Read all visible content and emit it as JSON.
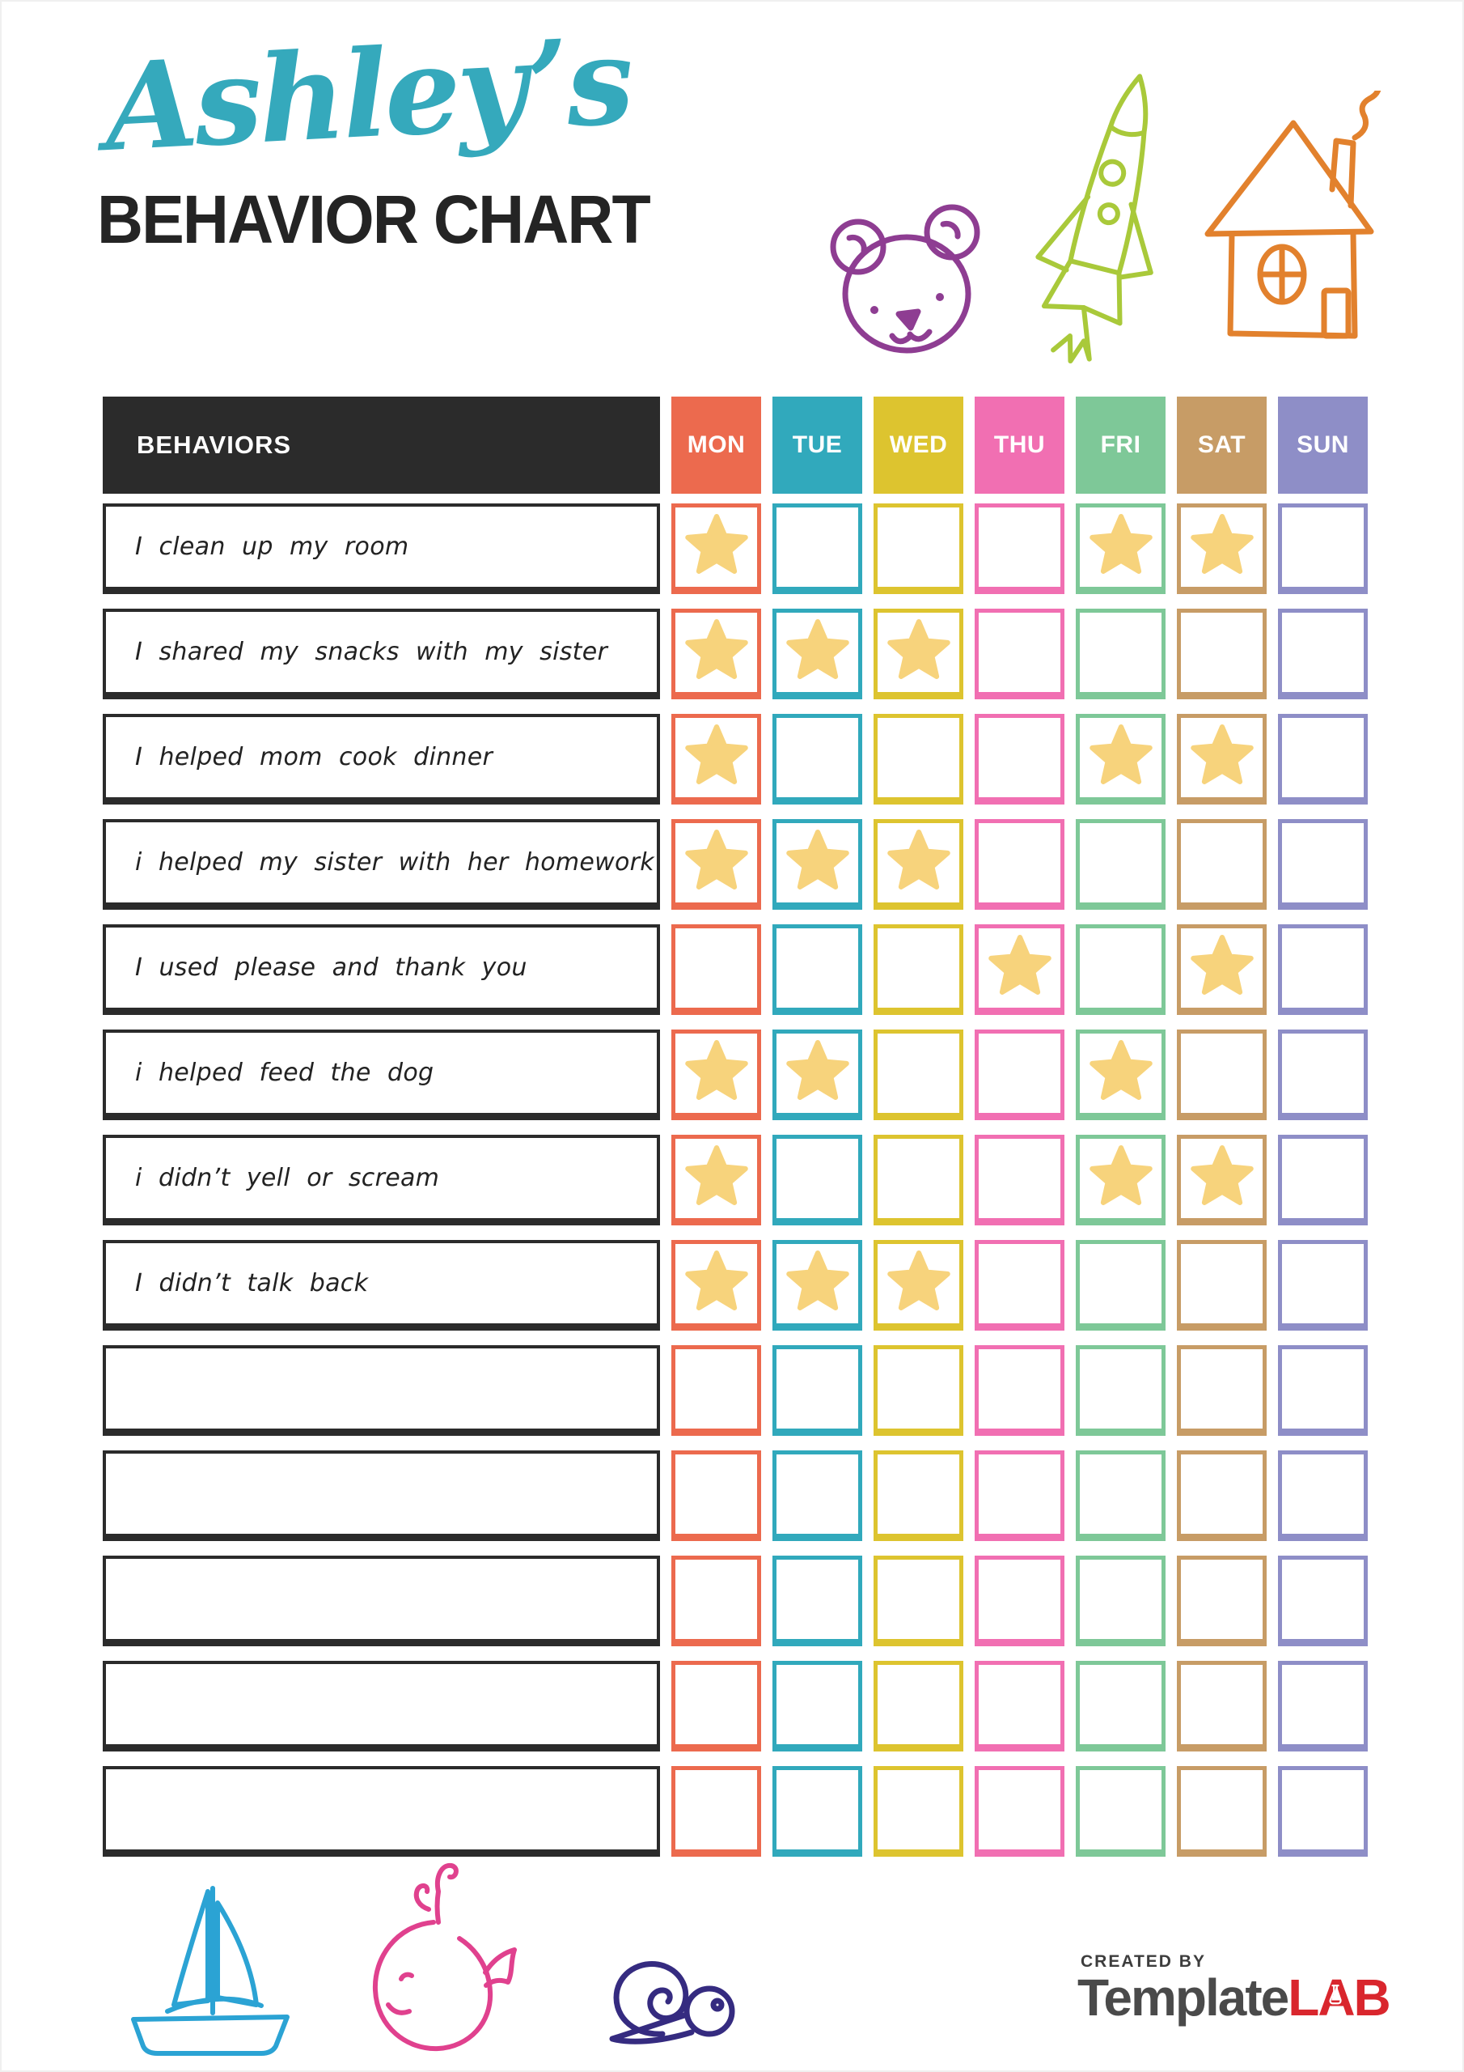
{
  "title": {
    "name_script": "Ashley’s",
    "heading": "BEHAVIOR CHART"
  },
  "table": {
    "behaviors_header": "BEHAVIORS",
    "star_color": "#f7d37c",
    "days": [
      {
        "label": "MON",
        "color": "#ec6a4e"
      },
      {
        "label": "TUE",
        "color": "#31a9bc"
      },
      {
        "label": "WED",
        "color": "#ddc42f"
      },
      {
        "label": "THU",
        "color": "#f16fb2"
      },
      {
        "label": "FRI",
        "color": "#7ec898"
      },
      {
        "label": "SAT",
        "color": "#c79c66"
      },
      {
        "label": "SUN",
        "color": "#8e8ec7"
      }
    ],
    "rows": [
      {
        "label": "I clean up my room",
        "stars": [
          "MON",
          "FRI",
          "SAT"
        ]
      },
      {
        "label": "I shared my snacks with my sister",
        "stars": [
          "MON",
          "TUE",
          "WED"
        ]
      },
      {
        "label": "I helped mom cook dinner",
        "stars": [
          "MON",
          "FRI",
          "SAT"
        ]
      },
      {
        "label": "i helped my sister with her homework",
        "stars": [
          "MON",
          "TUE",
          "WED"
        ]
      },
      {
        "label": "I used please and thank you",
        "stars": [
          "THU",
          "SAT"
        ]
      },
      {
        "label": "i helped feed the dog",
        "stars": [
          "MON",
          "TUE",
          "FRI"
        ]
      },
      {
        "label": "i didn’t yell or scream",
        "stars": [
          "MON",
          "FRI",
          "SAT"
        ]
      },
      {
        "label": "I didn’t talk back",
        "stars": [
          "MON",
          "TUE",
          "WED"
        ]
      },
      {
        "label": "",
        "stars": []
      },
      {
        "label": "",
        "stars": []
      },
      {
        "label": "",
        "stars": []
      },
      {
        "label": "",
        "stars": []
      },
      {
        "label": "",
        "stars": []
      }
    ]
  },
  "doodles": {
    "bear_color": "#8e3d92",
    "rocket_color": "#a9c93a",
    "house_color": "#e2812d",
    "boat_color": "#2ba3d4",
    "whale_color": "#e0418e",
    "snail_color": "#352b80"
  },
  "footer": {
    "created_by": "CREATED BY",
    "brand_dark": "Template",
    "brand_red": "LAB"
  }
}
